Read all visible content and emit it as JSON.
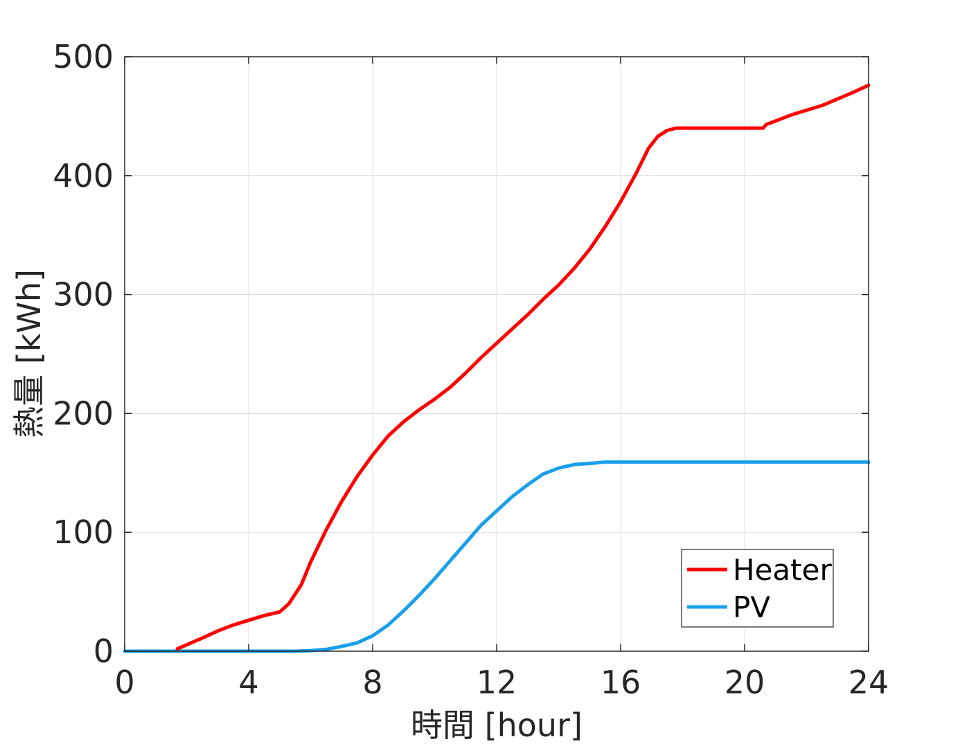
{
  "chart_data": {
    "type": "line",
    "xlabel": "時間 [hour]",
    "ylabel": "熱量 [kWh]",
    "xlim": [
      0,
      24
    ],
    "ylim": [
      0,
      500
    ],
    "xticks": [
      0,
      4,
      8,
      12,
      16,
      20,
      24
    ],
    "yticks": [
      0,
      100,
      200,
      300,
      400,
      500
    ],
    "grid": true,
    "legend_position": "bottom-right",
    "series": [
      {
        "name": "Heater",
        "color": "#ff0000",
        "x": [
          1.7,
          2.5,
          3.0,
          3.5,
          4.0,
          4.5,
          5.0,
          5.3,
          5.7,
          6.0,
          6.5,
          7.0,
          7.5,
          8.0,
          8.5,
          9.0,
          9.5,
          10.0,
          10.5,
          11.0,
          11.5,
          12.0,
          12.5,
          13.0,
          13.5,
          14.0,
          14.5,
          15.0,
          15.5,
          16.0,
          16.5,
          16.9,
          17.2,
          17.5,
          17.8,
          18.5,
          19.5,
          20.6,
          20.7,
          21.5,
          22.5,
          23.5,
          24.0
        ],
        "y": [
          2,
          11,
          17,
          22,
          26,
          30,
          33,
          40,
          56,
          75,
          102,
          126,
          147,
          165,
          181,
          193,
          203,
          212,
          222,
          234,
          247,
          259,
          271,
          283,
          296,
          308,
          322,
          338,
          357,
          378,
          402,
          423,
          433,
          438,
          440,
          440,
          440,
          440,
          443,
          451,
          459,
          470,
          476
        ]
      },
      {
        "name": "PV",
        "color": "#1a9fea",
        "x": [
          0,
          5.5,
          6.0,
          6.5,
          7.0,
          7.5,
          8.0,
          8.5,
          9.0,
          9.5,
          10.0,
          10.5,
          11.0,
          11.5,
          12.0,
          12.5,
          13.0,
          13.5,
          14.0,
          14.5,
          15.0,
          15.5,
          16.0,
          17.0,
          18.0,
          20.0,
          22.0,
          24.0
        ],
        "y": [
          0,
          0,
          0.5,
          1.5,
          4,
          7,
          13,
          22,
          34,
          47,
          61,
          76,
          91,
          106,
          118,
          130,
          140,
          149,
          154,
          157,
          158,
          159,
          159,
          159,
          159,
          159,
          159,
          159
        ]
      }
    ]
  }
}
